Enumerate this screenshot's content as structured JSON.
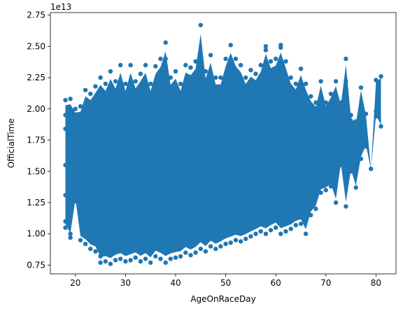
{
  "chart_data": {
    "type": "scatter",
    "title": "",
    "xlabel": "AgeOnRaceDay",
    "ylabel": "OfficialTime",
    "offset_label": "1e13",
    "xlim": [
      15,
      84
    ],
    "ylim": [
      0.68,
      2.77
    ],
    "x_ticks": [
      20,
      30,
      40,
      50,
      60,
      70,
      80
    ],
    "y_ticks": [
      0.75,
      1.0,
      1.25,
      1.5,
      1.75,
      2.0,
      2.25,
      2.5,
      2.75
    ],
    "y_tick_labels": [
      "0.75",
      "1.00",
      "1.25",
      "1.50",
      "1.75",
      "2.00",
      "2.25",
      "2.50",
      "2.75"
    ],
    "marker_color": "#1f77b4",
    "grid": false,
    "legend": "none",
    "series": [
      {
        "points": [
          [
            18,
            2.07
          ],
          [
            18,
            1.95
          ],
          [
            18,
            1.84
          ],
          [
            18,
            1.55
          ],
          [
            18,
            1.31
          ],
          [
            18,
            1.1
          ],
          [
            18,
            1.05
          ],
          [
            19,
            2.08
          ],
          [
            19,
            1.6
          ],
          [
            19,
            1.0
          ],
          [
            19,
            0.97
          ],
          [
            20,
            2.0
          ],
          [
            20,
            1.8
          ],
          [
            20,
            1.26
          ],
          [
            21,
            2.02
          ],
          [
            21,
            0.95
          ],
          [
            22,
            2.15
          ],
          [
            22,
            0.92
          ],
          [
            23,
            2.12
          ],
          [
            23,
            0.88
          ],
          [
            24,
            2.18
          ],
          [
            24,
            0.86
          ],
          [
            25,
            2.25
          ],
          [
            25,
            0.77
          ],
          [
            25,
            0.82
          ],
          [
            26,
            2.2
          ],
          [
            26,
            0.78
          ],
          [
            27,
            2.3
          ],
          [
            27,
            0.76
          ],
          [
            28,
            2.22
          ],
          [
            28,
            0.79
          ],
          [
            29,
            2.35
          ],
          [
            29,
            0.8
          ],
          [
            30,
            2.2
          ],
          [
            30,
            0.78
          ],
          [
            31,
            2.35
          ],
          [
            31,
            0.79
          ],
          [
            32,
            2.22
          ],
          [
            32,
            0.81
          ],
          [
            33,
            2.28
          ],
          [
            33,
            0.78
          ],
          [
            34,
            2.35
          ],
          [
            34,
            0.8
          ],
          [
            35,
            2.2
          ],
          [
            35,
            0.77
          ],
          [
            36,
            2.34
          ],
          [
            36,
            0.82
          ],
          [
            37,
            2.4
          ],
          [
            37,
            0.8
          ],
          [
            38,
            2.53
          ],
          [
            38,
            2.4
          ],
          [
            38,
            0.77
          ],
          [
            39,
            2.25
          ],
          [
            39,
            0.8
          ],
          [
            40,
            2.3
          ],
          [
            40,
            0.81
          ],
          [
            41,
            2.2
          ],
          [
            41,
            0.82
          ],
          [
            42,
            2.35
          ],
          [
            42,
            0.85
          ],
          [
            43,
            2.33
          ],
          [
            43,
            0.83
          ],
          [
            44,
            2.38
          ],
          [
            44,
            0.85
          ],
          [
            45,
            2.67
          ],
          [
            45,
            0.88
          ],
          [
            46,
            2.3
          ],
          [
            46,
            0.86
          ],
          [
            47,
            2.43
          ],
          [
            47,
            0.9
          ],
          [
            48,
            2.25
          ],
          [
            48,
            0.88
          ],
          [
            49,
            2.25
          ],
          [
            49,
            0.9
          ],
          [
            50,
            2.4
          ],
          [
            50,
            0.92
          ],
          [
            51,
            2.51
          ],
          [
            51,
            0.93
          ],
          [
            52,
            2.4
          ],
          [
            52,
            0.95
          ],
          [
            53,
            2.35
          ],
          [
            53,
            0.94
          ],
          [
            54,
            2.25
          ],
          [
            54,
            0.96
          ],
          [
            55,
            2.31
          ],
          [
            55,
            0.98
          ],
          [
            56,
            2.28
          ],
          [
            56,
            1.0
          ],
          [
            57,
            2.35
          ],
          [
            57,
            1.02
          ],
          [
            58,
            2.5
          ],
          [
            58,
            2.47
          ],
          [
            58,
            1.0
          ],
          [
            59,
            2.38
          ],
          [
            59,
            1.03
          ],
          [
            60,
            2.4
          ],
          [
            60,
            1.05
          ],
          [
            61,
            2.51
          ],
          [
            61,
            2.49
          ],
          [
            61,
            1.0
          ],
          [
            62,
            2.38
          ],
          [
            62,
            1.02
          ],
          [
            63,
            2.25
          ],
          [
            63,
            1.04
          ],
          [
            64,
            2.2
          ],
          [
            64,
            1.07
          ],
          [
            65,
            2.32
          ],
          [
            65,
            1.08
          ],
          [
            66,
            2.2
          ],
          [
            66,
            1.0
          ],
          [
            66,
            1.11
          ],
          [
            67,
            2.1
          ],
          [
            67,
            1.15
          ],
          [
            68,
            2.05
          ],
          [
            68,
            1.2
          ],
          [
            69,
            2.22
          ],
          [
            69,
            1.33
          ],
          [
            70,
            2.05
          ],
          [
            70,
            1.35
          ],
          [
            71,
            2.12
          ],
          [
            71,
            1.38
          ],
          [
            72,
            2.22
          ],
          [
            72,
            1.45
          ],
          [
            72,
            1.25
          ],
          [
            73,
            2.05
          ],
          [
            73,
            1.55
          ],
          [
            74,
            2.4
          ],
          [
            74,
            2.22
          ],
          [
            74,
            1.22
          ],
          [
            75,
            1.95
          ],
          [
            75,
            1.5
          ],
          [
            76,
            1.9
          ],
          [
            76,
            1.37
          ],
          [
            77,
            2.17
          ],
          [
            77,
            1.6
          ],
          [
            78,
            1.96
          ],
          [
            78,
            1.7
          ],
          [
            79,
            1.52
          ],
          [
            80,
            2.23
          ],
          [
            80,
            1.98
          ],
          [
            80,
            1.94
          ],
          [
            81,
            2.26
          ],
          [
            81,
            1.86
          ]
        ]
      }
    ]
  }
}
